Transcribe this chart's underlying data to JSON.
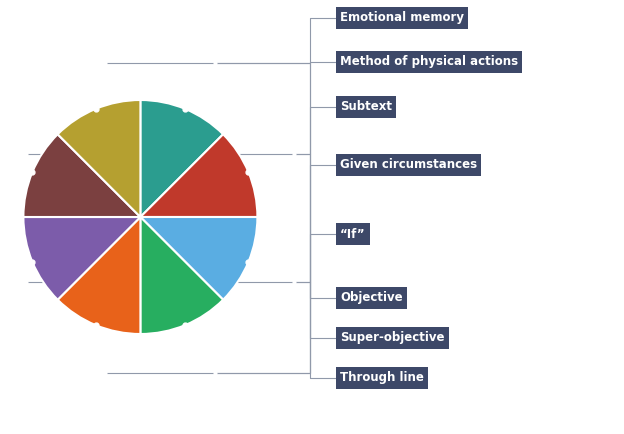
{
  "slices": 8,
  "colors": [
    "#2b9d8f",
    "#c0392b",
    "#5aade2",
    "#27ae60",
    "#e8621a",
    "#7c5caa",
    "#7b4040",
    "#b5a030"
  ],
  "labels": [
    "Emotional memory",
    "Method of physical actions",
    "Subtext",
    "Given circumstances",
    "“If”",
    "Objective",
    "Super-objective",
    "Through line"
  ],
  "label_box_color": "#3d4868",
  "label_text_color": "#ffffff",
  "label_fontsize": 8.5,
  "label_fontweight": "bold",
  "background_color": "#ffffff",
  "figsize": [
    6.24,
    4.34
  ],
  "dpi": 100
}
